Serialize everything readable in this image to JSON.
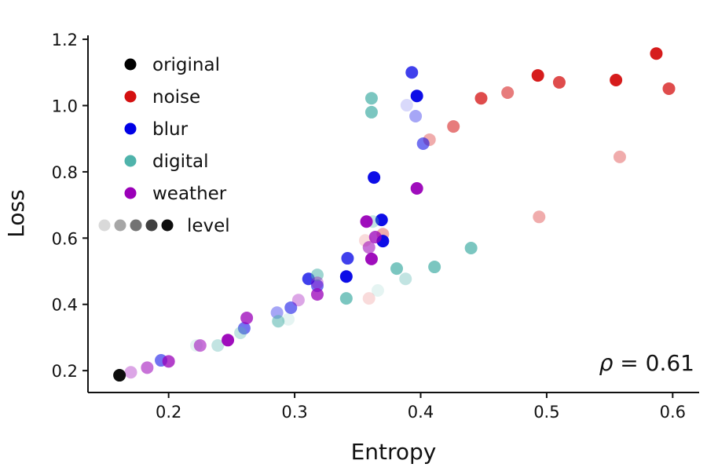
{
  "chart_data": {
    "type": "scatter",
    "title": "",
    "xlabel": "Entropy",
    "ylabel": "Loss",
    "xlim": [
      0.136,
      0.621
    ],
    "ylim": [
      0.134,
      1.212
    ],
    "xticks": [
      0.2,
      0.3,
      0.4,
      0.5,
      0.6
    ],
    "xtick_labels": [
      "0.2",
      "0.3",
      "0.4",
      "0.5",
      "0.6"
    ],
    "yticks": [
      0.2,
      0.4,
      0.6,
      0.8,
      1.0,
      1.2
    ],
    "ytick_labels": [
      "0.2",
      "0.4",
      "0.6",
      "0.8",
      "1.0",
      "1.2"
    ],
    "grid": false,
    "legend_placement": "top-left",
    "level_legend_label": "level",
    "level_alphas": [
      0.15,
      0.35,
      0.55,
      0.75,
      0.95
    ],
    "annotation": {
      "symbol": "ρ",
      "text": " = 0.61",
      "placement": "bottom-right"
    },
    "series": [
      {
        "name": "original",
        "color": "#000000",
        "points": [
          [
            0.161,
            0.186,
            5
          ]
        ]
      },
      {
        "name": "noise",
        "color": "#d41010",
        "points": [
          [
            0.587,
            1.157,
            5
          ],
          [
            0.493,
            1.091,
            5
          ],
          [
            0.51,
            1.07,
            4
          ],
          [
            0.555,
            1.077,
            5
          ],
          [
            0.597,
            1.051,
            4
          ],
          [
            0.469,
            1.039,
            3
          ],
          [
            0.448,
            1.022,
            4
          ],
          [
            0.426,
            0.937,
            3
          ],
          [
            0.407,
            0.897,
            2
          ],
          [
            0.558,
            0.845,
            2
          ],
          [
            0.494,
            0.664,
            2
          ],
          [
            0.37,
            0.612,
            2
          ],
          [
            0.359,
            0.418,
            1
          ],
          [
            0.356,
            0.593,
            1
          ]
        ]
      },
      {
        "name": "blur",
        "color": "#0000e6",
        "points": [
          [
            0.393,
            1.1,
            4
          ],
          [
            0.397,
            1.029,
            5
          ],
          [
            0.389,
            1.001,
            1
          ],
          [
            0.396,
            0.968,
            2
          ],
          [
            0.402,
            0.885,
            3
          ],
          [
            0.363,
            0.783,
            5
          ],
          [
            0.369,
            0.655,
            5
          ],
          [
            0.37,
            0.591,
            5
          ],
          [
            0.342,
            0.539,
            4
          ],
          [
            0.341,
            0.484,
            5
          ],
          [
            0.311,
            0.477,
            4
          ],
          [
            0.318,
            0.456,
            3
          ],
          [
            0.286,
            0.375,
            2
          ],
          [
            0.297,
            0.39,
            3
          ],
          [
            0.26,
            0.328,
            3
          ],
          [
            0.194,
            0.231,
            3
          ]
        ]
      },
      {
        "name": "digital",
        "color": "#4fb3ab",
        "points": [
          [
            0.361,
            1.022,
            4
          ],
          [
            0.361,
            0.98,
            4
          ],
          [
            0.362,
            0.65,
            2
          ],
          [
            0.44,
            0.57,
            4
          ],
          [
            0.381,
            0.508,
            4
          ],
          [
            0.411,
            0.513,
            4
          ],
          [
            0.388,
            0.477,
            2
          ],
          [
            0.366,
            0.442,
            1
          ],
          [
            0.341,
            0.418,
            4
          ],
          [
            0.318,
            0.489,
            3
          ],
          [
            0.287,
            0.349,
            3
          ],
          [
            0.295,
            0.355,
            1
          ],
          [
            0.257,
            0.314,
            2
          ],
          [
            0.239,
            0.276,
            2
          ],
          [
            0.222,
            0.276,
            1
          ]
        ]
      },
      {
        "name": "weather",
        "color": "#9a00b8",
        "points": [
          [
            0.397,
            0.75,
            5
          ],
          [
            0.357,
            0.65,
            5
          ],
          [
            0.364,
            0.603,
            4
          ],
          [
            0.359,
            0.572,
            3
          ],
          [
            0.361,
            0.537,
            5
          ],
          [
            0.318,
            0.43,
            4
          ],
          [
            0.318,
            0.465,
            2
          ],
          [
            0.303,
            0.413,
            2
          ],
          [
            0.262,
            0.359,
            4
          ],
          [
            0.247,
            0.292,
            5
          ],
          [
            0.225,
            0.276,
            3
          ],
          [
            0.2,
            0.228,
            4
          ],
          [
            0.183,
            0.209,
            3
          ],
          [
            0.17,
            0.195,
            2
          ]
        ]
      }
    ]
  }
}
